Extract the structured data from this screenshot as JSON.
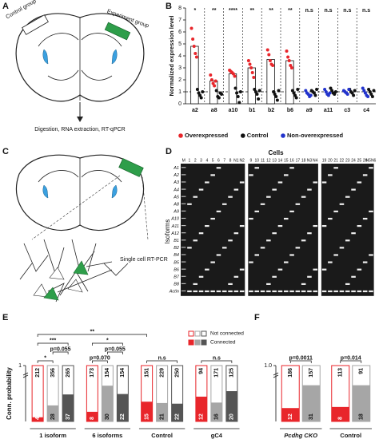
{
  "panels": {
    "A": {
      "letter": "A",
      "control_label": "Control group",
      "experiment_label": "Experiment group",
      "caption": "Digestion, RNA extraction, RT-qPCR"
    },
    "C": {
      "letter": "C",
      "caption": "Single cell RT-PCR"
    },
    "D": {
      "letter": "D",
      "title": "Cells",
      "ylabel": "Isoforms",
      "gels": [
        [
          "M",
          "1",
          "2",
          "3",
          "4",
          "5",
          "6",
          "7",
          "8",
          "N1",
          "N2"
        ],
        [
          "9",
          "10",
          "11",
          "12",
          "13",
          "14",
          "15",
          "16",
          "17",
          "18",
          "N3",
          "N4"
        ],
        [
          "19",
          "20",
          "21",
          "22",
          "23",
          "24",
          "25",
          "26",
          "N5N6"
        ]
      ],
      "rows": [
        "A1",
        "A2",
        "A3",
        "A4",
        "A5",
        "A8",
        "A9",
        "A10",
        "A11",
        "A12",
        "B1",
        "B2",
        "B4",
        "B5",
        "B6",
        "B7",
        "B8",
        "Actin"
      ]
    }
  },
  "chart_data": [
    {
      "type": "bar",
      "letter": "B",
      "ylabel": "Normalized expression level",
      "categories": [
        "a2",
        "a8",
        "a10",
        "b1",
        "b2",
        "b6",
        "a9",
        "a11",
        "c3",
        "c4"
      ],
      "significance": [
        "*",
        "**",
        "****",
        "**",
        "**",
        "**",
        "n.s",
        "n.s",
        "n.s",
        "n.s"
      ],
      "values": [
        4.8,
        1.9,
        2.5,
        3.0,
        3.7,
        3.6,
        null,
        null,
        null,
        null
      ],
      "reference_line": 1,
      "ylim": [
        0,
        8
      ],
      "yticks": [
        0,
        1,
        2,
        3,
        4,
        5,
        6,
        7,
        8
      ],
      "series": [
        {
          "name": "Overexpressed",
          "color": "#e8262b",
          "values": [
            [
              6.3,
              5.4,
              4.8,
              4.2,
              3.9
            ],
            [
              2.4,
              2.0,
              1.7,
              1.5,
              1.9
            ],
            [
              2.8,
              2.7,
              2.6,
              2.5,
              2.3
            ],
            [
              3.6,
              3.3,
              3.0,
              2.6,
              2.2
            ],
            [
              4.5,
              4.1,
              3.6,
              3.3,
              3.2
            ],
            [
              4.4,
              3.9,
              3.6,
              3.2,
              3.0
            ],
            null,
            null,
            null,
            null
          ]
        },
        {
          "name": "Control",
          "color": "#111111",
          "values": [
            [
              1.2,
              0.9,
              0.7,
              0.5,
              1.0
            ],
            [
              1.1,
              0.6,
              0.5,
              0.9,
              0.8
            ],
            [
              1.3,
              0.9,
              0.6,
              0.1,
              1.0
            ],
            [
              1.2,
              1.0,
              0.8,
              0.4,
              1.1
            ],
            [
              1.0,
              0.8,
              0.6,
              0.3,
              1.1
            ],
            [
              1.1,
              0.9,
              0.7,
              0.5,
              1.2
            ],
            [
              1.1,
              1.0,
              0.9,
              0.7,
              1.2
            ],
            [
              1.3,
              1.1,
              0.9,
              0.8,
              1.0
            ],
            [
              1.2,
              1.0,
              0.9,
              0.7,
              1.1
            ],
            [
              1.2,
              1.0,
              0.8,
              0.6,
              1.1
            ]
          ]
        },
        {
          "name": "Non-overexpressed",
          "color": "#2233cc",
          "values": [
            null,
            null,
            null,
            null,
            null,
            null,
            [
              1.1,
              0.9,
              0.8,
              0.6,
              0.7
            ],
            [
              1.2,
              1.0,
              0.8,
              0.7,
              0.9
            ],
            [
              1.1,
              1.0,
              0.9,
              0.8,
              1.2
            ],
            [
              1.3,
              1.1,
              0.9,
              0.7,
              0.6
            ]
          ]
        }
      ]
    },
    {
      "type": "stacked-bar",
      "letter": "E",
      "ylabel": "Conn. probability",
      "ylim": [
        0,
        0.2
      ],
      "yticks": [
        {
          "value": 1,
          "label": "1"
        }
      ],
      "colors": [
        "#e8262b",
        "#a6a6a6",
        "#555555"
      ],
      "legend": [
        "Not connected",
        "Connected"
      ],
      "groups": [
        {
          "name": "1 isoform",
          "bars": [
            {
              "value": 0.019,
              "connected": 4,
              "not_connected": 212
            },
            {
              "value": 0.073,
              "connected": 28,
              "not_connected": 356
            },
            {
              "value": 0.123,
              "connected": 37,
              "not_connected": 265
            }
          ]
        },
        {
          "name": "6 isoforms",
          "bars": [
            {
              "value": 0.044,
              "connected": 8,
              "not_connected": 173
            },
            {
              "value": 0.163,
              "connected": 30,
              "not_connected": 154
            },
            {
              "value": 0.125,
              "connected": 22,
              "not_connected": 154
            }
          ]
        },
        {
          "name": "Control",
          "bars": [
            {
              "value": 0.09,
              "connected": 15,
              "not_connected": 151
            },
            {
              "value": 0.084,
              "connected": 21,
              "not_connected": 229
            },
            {
              "value": 0.081,
              "connected": 22,
              "not_connected": 250
            }
          ]
        },
        {
          "name": "gC4",
          "bars": [
            {
              "value": 0.113,
              "connected": 12,
              "not_connected": 94
            },
            {
              "value": 0.086,
              "connected": 16,
              "not_connected": 171
            },
            {
              "value": 0.138,
              "connected": 20,
              "not_connected": 125
            }
          ]
        }
      ],
      "comparisons": [
        {
          "label": "*",
          "bars": [
            0,
            1
          ]
        },
        {
          "label": "p=0.055",
          "bars": [
            1,
            2
          ]
        },
        {
          "label": "***",
          "bars": [
            0,
            2
          ]
        },
        {
          "label": "p=0.070",
          "bars": [
            3,
            4
          ]
        },
        {
          "label": "*",
          "bars": [
            3,
            5
          ]
        },
        {
          "label": "p=0.055",
          "bars": [
            4,
            5
          ]
        },
        {
          "label": "n.s",
          "bars": [
            6,
            8
          ]
        },
        {
          "label": "n.s",
          "bars": [
            9,
            11
          ]
        },
        {
          "label": "**",
          "bars": [
            0,
            6
          ]
        }
      ]
    },
    {
      "type": "stacked-bar",
      "letter": "F",
      "ylim": [
        0,
        0.2
      ],
      "yticks": [
        {
          "value": 1,
          "label": "1.0"
        }
      ],
      "colors": [
        "#e8262b",
        "#a6a6a6"
      ],
      "groups": [
        {
          "name": "Pcdhg CKO",
          "font_style": "italic",
          "bars": [
            {
              "value": 0.061,
              "connected": 12,
              "not_connected": 186
            },
            {
              "value": 0.165,
              "connected": 31,
              "not_connected": 157
            }
          ]
        },
        {
          "name": "Control",
          "font_style": "normal",
          "bars": [
            {
              "value": 0.066,
              "connected": 8,
              "not_connected": 113
            },
            {
              "value": 0.165,
              "connected": 18,
              "not_connected": 91
            }
          ]
        }
      ],
      "comparisons": [
        {
          "label": "p=0.0011",
          "bars": [
            0,
            1
          ]
        },
        {
          "label": "p=0.014",
          "bars": [
            2,
            3
          ]
        }
      ]
    }
  ]
}
